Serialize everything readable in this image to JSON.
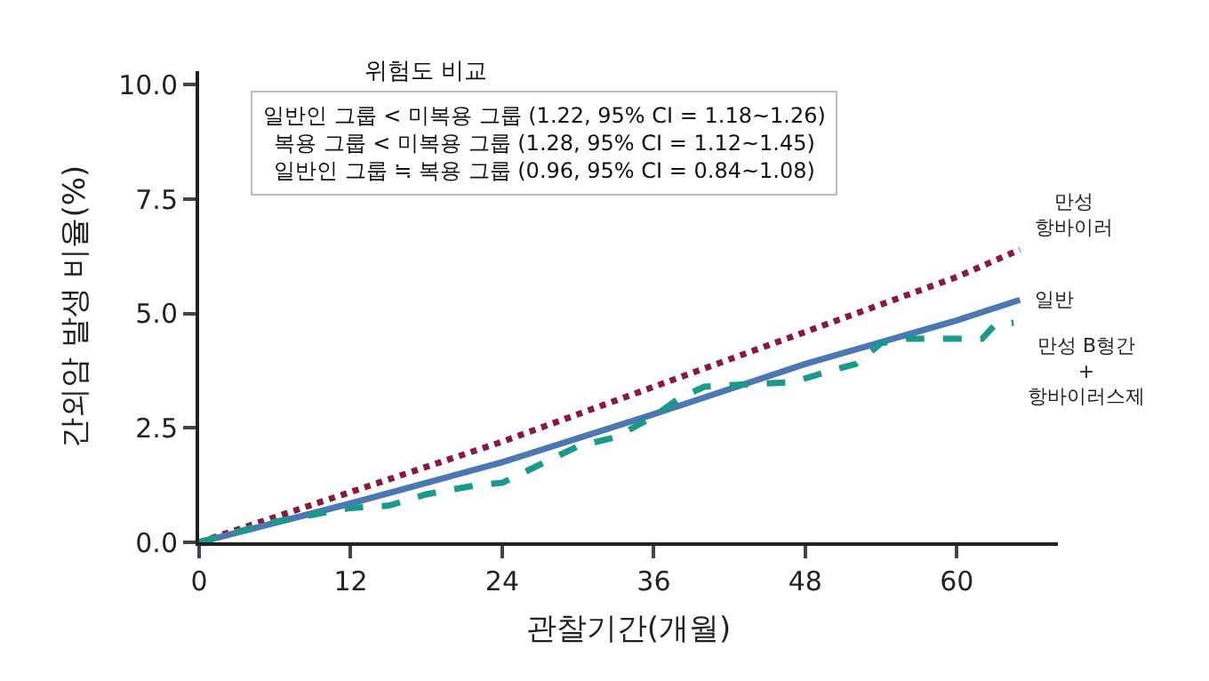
{
  "chart_data": {
    "type": "line",
    "xlabel": "관찰기간(개월)",
    "ylabel": "간외암 발생 비율(%)",
    "xlim": [
      0,
      68
    ],
    "xticks": [
      0,
      12,
      24,
      36,
      48,
      60
    ],
    "ylim": [
      0,
      10.3
    ],
    "yticks": [
      {
        "value": 0,
        "label": "0.0"
      },
      2.5,
      {
        "value": 5,
        "label": "5.0"
      },
      7.5,
      {
        "value": 10,
        "label": "10.0"
      }
    ],
    "grid": false,
    "legend": false,
    "marker": "none",
    "annotations": [
      "위험도 비교",
      "일반인 그룹 < 미복용 그룹 (1.22, 95% CI = 1.18~1.26)",
      "복용 그룹 < 미복용 그룹 (1.28, 95% CI = 1.12~1.45)",
      "일반인 그룹 ≒ 복용 그룹 (0.96, 95% CI = 0.84~1.08)"
    ],
    "series": [
      {
        "name": "만성\n항바이러",
        "color": "#8b1a3a",
        "line_style": "dotted",
        "x": [
          0,
          12,
          24,
          36,
          48,
          60,
          65
        ],
        "values": [
          0,
          1.1,
          2.2,
          3.4,
          4.6,
          5.8,
          6.4
        ]
      },
      {
        "name": "일반",
        "color": "#4a78b0",
        "line_style": "solid",
        "x": [
          0,
          12,
          24,
          36,
          48,
          60,
          65
        ],
        "values": [
          0,
          0.85,
          1.75,
          2.8,
          3.9,
          4.85,
          5.3
        ]
      },
      {
        "name": "만성 B형간\n+\n항바이러스제",
        "color": "#1a9a8a",
        "line_style": "dashed",
        "x": [
          0,
          6,
          12,
          15,
          18,
          22,
          24,
          27,
          30,
          33,
          36,
          38,
          40,
          43,
          47,
          50,
          52,
          54,
          56,
          60,
          62,
          63,
          64.5
        ],
        "values": [
          0,
          0.45,
          0.75,
          0.8,
          1.05,
          1.25,
          1.3,
          1.7,
          2.1,
          2.3,
          2.75,
          3.15,
          3.4,
          3.45,
          3.5,
          3.75,
          3.9,
          4.35,
          4.45,
          4.45,
          4.45,
          4.75,
          4.8
        ]
      }
    ]
  }
}
